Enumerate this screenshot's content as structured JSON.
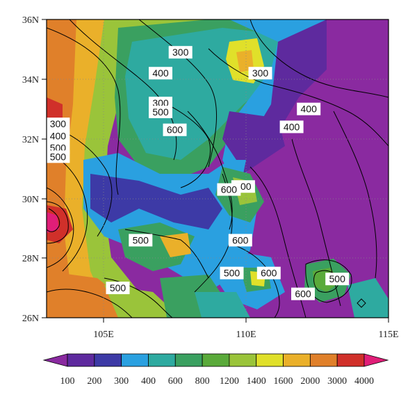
{
  "map": {
    "lat_ticks": [
      "36N",
      "34N",
      "32N",
      "30N",
      "28N",
      "26N"
    ],
    "lon_ticks": [
      "105E",
      "110E",
      "115E"
    ],
    "lat_range": [
      26,
      36
    ],
    "lon_range": [
      103,
      115
    ],
    "contour_labels": [
      {
        "text": "300",
        "lon": 107.0,
        "lat": 33.2
      },
      {
        "text": "400",
        "lon": 107.0,
        "lat": 34.2
      },
      {
        "text": "300",
        "lon": 110.5,
        "lat": 34.2
      },
      {
        "text": "300",
        "lon": 107.7,
        "lat": 34.9
      },
      {
        "text": "400",
        "lon": 112.2,
        "lat": 33.0
      },
      {
        "text": "300",
        "lon": 103.4,
        "lat": 32.5
      },
      {
        "text": "400",
        "lon": 103.4,
        "lat": 32.1
      },
      {
        "text": "500",
        "lon": 103.4,
        "lat": 31.7
      },
      {
        "text": "500",
        "lon": 103.4,
        "lat": 31.4
      },
      {
        "text": "500",
        "lon": 107.0,
        "lat": 32.9
      },
      {
        "text": "600",
        "lon": 107.5,
        "lat": 32.3
      },
      {
        "text": "400",
        "lon": 111.6,
        "lat": 32.4
      },
      {
        "text": "500",
        "lon": 109.9,
        "lat": 30.4
      },
      {
        "text": "600",
        "lon": 109.4,
        "lat": 30.3
      },
      {
        "text": "500",
        "lon": 106.3,
        "lat": 28.6
      },
      {
        "text": "600",
        "lon": 109.8,
        "lat": 28.6
      },
      {
        "text": "500",
        "lon": 109.5,
        "lat": 27.5
      },
      {
        "text": "600",
        "lon": 110.8,
        "lat": 27.5
      },
      {
        "text": "600",
        "lon": 112.0,
        "lat": 26.8
      },
      {
        "text": "500",
        "lon": 113.2,
        "lat": 27.3
      },
      {
        "text": "500",
        "lon": 105.5,
        "lat": 27.0
      }
    ]
  },
  "colorbar": {
    "labels": [
      "100",
      "200",
      "300",
      "400",
      "600",
      "800",
      "1200",
      "1400",
      "1600",
      "2000",
      "3000",
      "4000"
    ],
    "colors": [
      "#8a2aa0",
      "#5e2a9e",
      "#3d3aa6",
      "#2aa0e0",
      "#2eaaa0",
      "#3aa060",
      "#5aaa3a",
      "#9ac43a",
      "#e0e02a",
      "#eab02a",
      "#e0802a",
      "#d0302a",
      "#e01e78"
    ]
  }
}
